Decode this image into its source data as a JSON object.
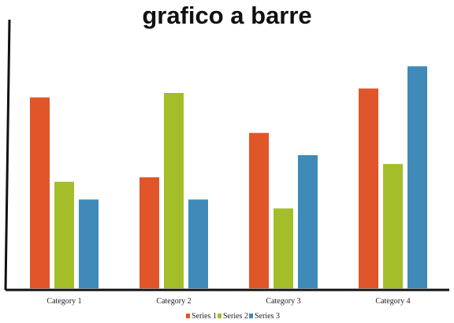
{
  "chart_data": {
    "type": "bar",
    "title": "grafico a barre",
    "categories": [
      "Category 1",
      "Category 2",
      "Category 3",
      "Category 4"
    ],
    "series": [
      {
        "name": "Series 1",
        "color": "#e05529",
        "values": [
          4.3,
          2.5,
          3.5,
          4.5
        ]
      },
      {
        "name": "Series 2",
        "color": "#a4be2a",
        "values": [
          2.4,
          4.4,
          1.8,
          2.8
        ]
      },
      {
        "name": "Series 3",
        "color": "#3f8ab8",
        "values": [
          2.0,
          2.0,
          3.0,
          5.0
        ]
      }
    ],
    "ylim": [
      0,
      5.5
    ],
    "grid": false,
    "legend_position": "bottom-center"
  }
}
